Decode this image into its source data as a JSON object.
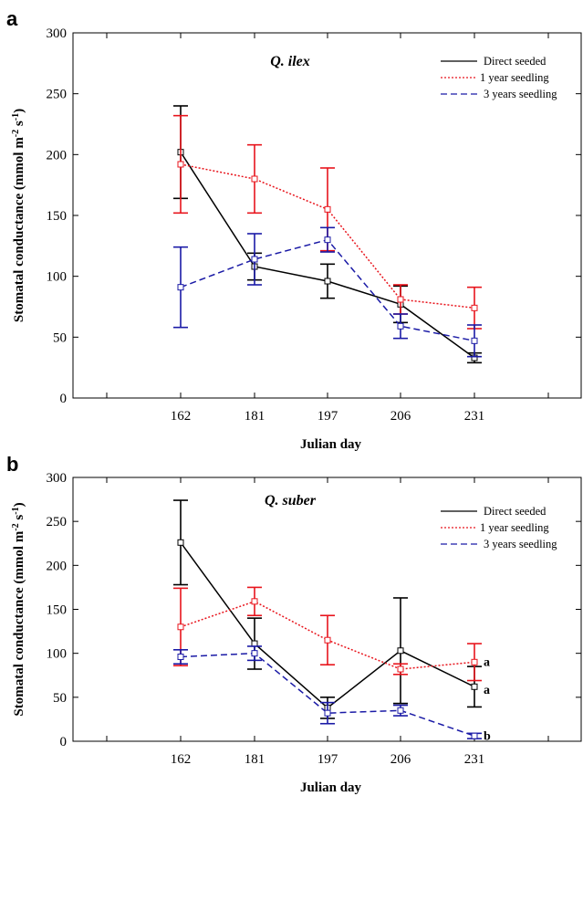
{
  "chart_data": [
    {
      "type": "line",
      "panel_label": "a",
      "title": "Q. ilex",
      "xlabel": "Julian day",
      "ylabel": "Stomatal conductance (mmol m-2 s-1)",
      "ylabel_parts": {
        "base": "Stomatal conductance (mmol m",
        "exp1": "-2",
        "mid": " s",
        "exp2": "-1",
        "end": ")"
      },
      "categories": [
        "162",
        "181",
        "197",
        "206",
        "231"
      ],
      "ylim": [
        0,
        300
      ],
      "yticks": [
        0,
        50,
        100,
        150,
        200,
        250,
        300
      ],
      "grid": false,
      "legend_position": "top-right",
      "series": [
        {
          "name": "Direct seeded",
          "color": "#000000",
          "dash": "solid",
          "values": [
            202,
            108,
            96,
            77,
            33
          ],
          "err": [
            38,
            11,
            14,
            15,
            4
          ]
        },
        {
          "name": "1 year seedling",
          "color": "#e8141c",
          "dash": "dotted",
          "values": [
            192,
            180,
            155,
            81,
            74
          ],
          "err": [
            40,
            28,
            34,
            12,
            17
          ]
        },
        {
          "name": "3 years seedling",
          "color": "#1a1aa6",
          "dash": "dashed",
          "values": [
            91,
            114,
            130,
            59,
            47
          ],
          "err": [
            33,
            21,
            10,
            10,
            13
          ]
        }
      ],
      "annotations": []
    },
    {
      "type": "line",
      "panel_label": "b",
      "title": "Q. suber",
      "xlabel": "Julian day",
      "ylabel": "Stomatal conductance (mmol m-2 s-1)",
      "ylabel_parts": {
        "base": "Stomatal conductance (mmol m",
        "exp1": "-2",
        "mid": " s",
        "exp2": "-1",
        "end": ")"
      },
      "categories": [
        "162",
        "181",
        "197",
        "206",
        "231"
      ],
      "ylim": [
        0,
        300
      ],
      "yticks": [
        0,
        50,
        100,
        150,
        200,
        250,
        300
      ],
      "grid": false,
      "legend_position": "top-right",
      "series": [
        {
          "name": "Direct seeded",
          "color": "#000000",
          "dash": "solid",
          "values": [
            226,
            111,
            38,
            103,
            62
          ],
          "err": [
            48,
            29,
            12,
            60,
            23
          ]
        },
        {
          "name": "1 year seedling",
          "color": "#e8141c",
          "dash": "dotted",
          "values": [
            130,
            159,
            115,
            82,
            90
          ],
          "err": [
            44,
            16,
            28,
            6,
            21
          ]
        },
        {
          "name": "3 years seedling",
          "color": "#1a1aa6",
          "dash": "dashed",
          "values": [
            96,
            100,
            32,
            35,
            6
          ],
          "err": [
            8,
            8,
            12,
            6,
            3
          ]
        }
      ],
      "annotations": [
        {
          "text": "a",
          "category": "231",
          "y": 91
        },
        {
          "text": "a",
          "category": "231",
          "y": 59
        },
        {
          "text": "b",
          "category": "231",
          "y": 7
        }
      ]
    }
  ]
}
